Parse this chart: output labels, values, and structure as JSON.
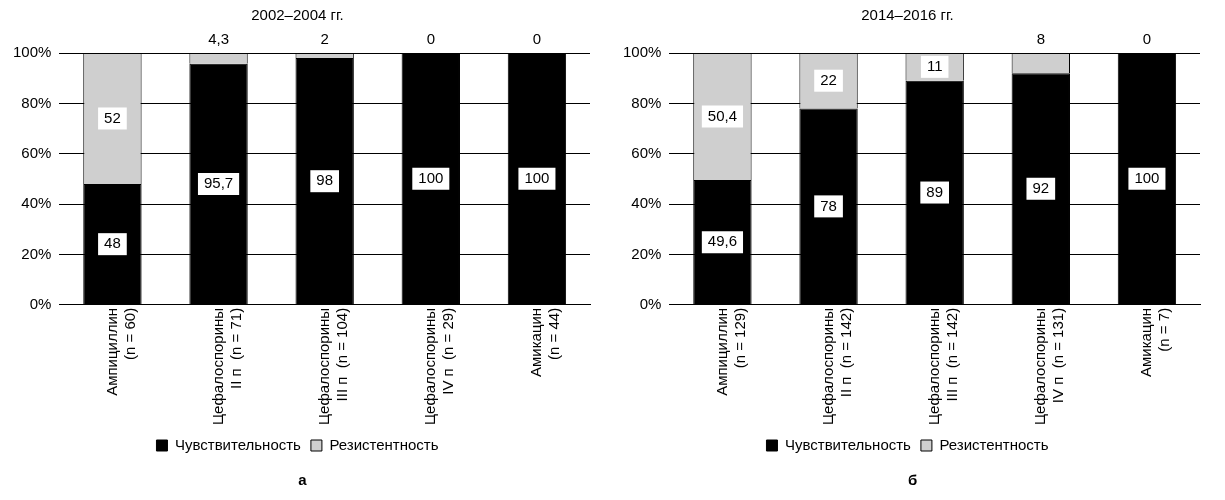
{
  "chart_data": [
    {
      "type": "bar",
      "title": "2002–2004 гг.",
      "categories": [
        "Ампициллин\n(n = 60)",
        "Цефалоспорины\nII п  (n = 71)",
        "Цефалоспорины\nIII п  (n = 104)",
        "Цефалоспорины\nIV п  (n = 29)",
        "Амикацин\n(n = 44)"
      ],
      "series": [
        {
          "name": "Чувствительность",
          "color": "#000000",
          "values": [
            48,
            95.7,
            98,
            100,
            100
          ],
          "value_labels": [
            "48",
            "95,7",
            "98",
            "100",
            "100"
          ]
        },
        {
          "name": "Резистентность",
          "color": "#cfcfcf",
          "values": [
            52,
            4.3,
            2,
            0,
            0
          ],
          "value_labels": [
            "52",
            "4,3",
            "2",
            "0",
            "0"
          ]
        }
      ],
      "stacked": true,
      "ylim": [
        0,
        100
      ],
      "yticks": [
        {
          "value": 0,
          "label": "0%"
        },
        {
          "value": 20,
          "label": "20%"
        },
        {
          "value": 40,
          "label": "40%"
        },
        {
          "value": 60,
          "label": "60%"
        },
        {
          "value": 80,
          "label": "80%"
        },
        {
          "value": 100,
          "label": "100%"
        }
      ],
      "grid": "y",
      "legend": "bottom",
      "annotations": [
        "а"
      ]
    },
    {
      "type": "bar",
      "title": "2014–2016 гг.",
      "categories": [
        "Ампициллин\n(n = 129)",
        "Цефалоспорины\nII п  (n = 142)",
        "Цефалоспорины\nIII п  (n = 142)",
        "Цефалоспорины\nIV п  (n = 131)",
        "Амикацин\n(n = 7)"
      ],
      "series": [
        {
          "name": "Чувствительность",
          "color": "#000000",
          "values": [
            49.6,
            78,
            89,
            92,
            100
          ],
          "value_labels": [
            "49,6",
            "78",
            "89",
            "92",
            "100"
          ]
        },
        {
          "name": "Резистентность",
          "color": "#cfcfcf",
          "values": [
            50.4,
            22,
            11,
            8,
            0
          ],
          "value_labels": [
            "50,4",
            "22",
            "11",
            "8",
            "0"
          ]
        }
      ],
      "stacked": true,
      "ylim": [
        0,
        100
      ],
      "yticks": [
        {
          "value": 0,
          "label": "0%"
        },
        {
          "value": 20,
          "label": "20%"
        },
        {
          "value": 40,
          "label": "40%"
        },
        {
          "value": 60,
          "label": "60%"
        },
        {
          "value": 80,
          "label": "80%"
        },
        {
          "value": 100,
          "label": "100%"
        }
      ],
      "grid": "y",
      "legend": "bottom",
      "annotations": [
        "б"
      ]
    }
  ]
}
